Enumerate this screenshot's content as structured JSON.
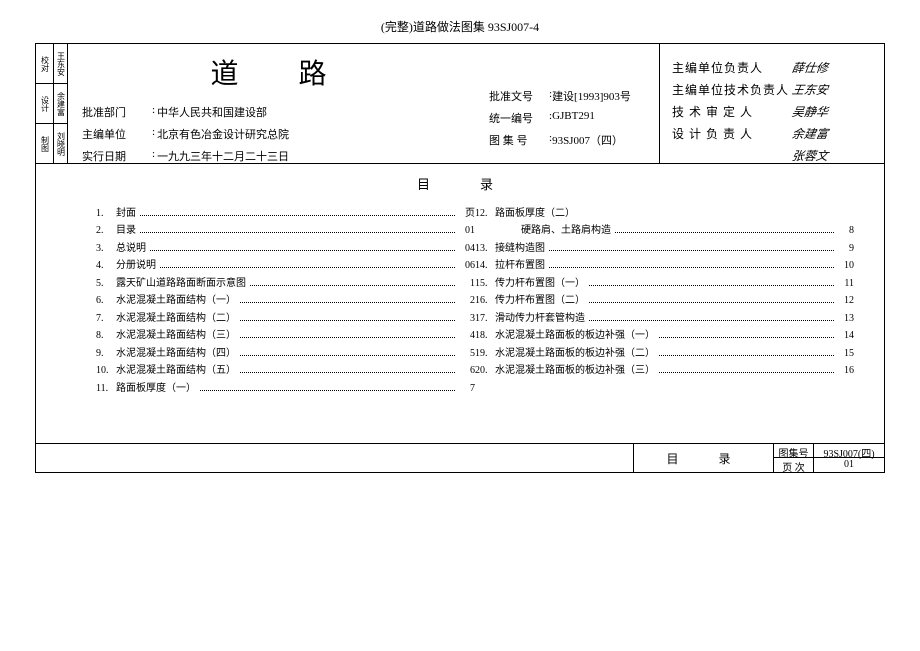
{
  "header": "(完整)道路做法图集 93SJ007-4",
  "side_tabs_a": [
    "校对",
    "设计",
    "制图"
  ],
  "side_tabs_b": [
    "王东安",
    "余建富",
    "刘晓明"
  ],
  "title": "道路",
  "info_left": [
    {
      "label": "批准部门",
      "value": "中华人民共和国建设部"
    },
    {
      "label": "主编单位",
      "value": "北京有色冶金设计研究总院"
    },
    {
      "label": "实行日期",
      "value": "一九九三年十二月二十三日"
    }
  ],
  "info_mid": [
    {
      "label": "批准文号",
      "value": "建设[1993]903号"
    },
    {
      "label": "统一编号",
      "value": "GJBT291"
    },
    {
      "label": "图 集 号",
      "value": "93SJ007（四）"
    }
  ],
  "info_right": [
    {
      "label": "主编单位负责人",
      "value": "薛仕修"
    },
    {
      "label": "主编单位技术负责人",
      "value": "王东安"
    },
    {
      "label": "技 术 审 定 人",
      "value": "吴静华"
    },
    {
      "label": "设 计 负 责 人",
      "value": "余建富"
    },
    {
      "label": "",
      "value": "张蓉文"
    }
  ],
  "toc_title": "目录",
  "toc_left": [
    {
      "n": "1.",
      "t": "封面",
      "p": "页"
    },
    {
      "n": "2.",
      "t": "目录",
      "p": "01"
    },
    {
      "n": "3.",
      "t": "总说明",
      "p": "04"
    },
    {
      "n": "4.",
      "t": "分册说明",
      "p": "06"
    },
    {
      "n": "5.",
      "t": "露天矿山道路路面断面示意图",
      "p": "1"
    },
    {
      "n": "6.",
      "t": "水泥混凝土路面结构（一）",
      "p": "2"
    },
    {
      "n": "7.",
      "t": "水泥混凝土路面结构（二）",
      "p": "3"
    },
    {
      "n": "8.",
      "t": "水泥混凝土路面结构（三）",
      "p": "4"
    },
    {
      "n": "9.",
      "t": "水泥混凝土路面结构（四）",
      "p": "5"
    },
    {
      "n": "10.",
      "t": "水泥混凝土路面结构（五）",
      "p": "6"
    },
    {
      "n": "11.",
      "t": "路面板厚度（一）",
      "p": "7"
    }
  ],
  "toc_right": [
    {
      "n": "12.",
      "t": "路面板厚度（二）",
      "p": ""
    },
    {
      "n": "",
      "t": "硬路肩、土路肩构造",
      "p": "8",
      "indent": true
    },
    {
      "n": "13.",
      "t": "接缝构造图",
      "p": "9"
    },
    {
      "n": "14.",
      "t": "拉杆布置图",
      "p": "10"
    },
    {
      "n": "15.",
      "t": "传力杆布置图（一）",
      "p": "11"
    },
    {
      "n": "16.",
      "t": "传力杆布置图（二）",
      "p": "12"
    },
    {
      "n": "17.",
      "t": "滑动传力杆套管构造",
      "p": "13"
    },
    {
      "n": "18.",
      "t": "水泥混凝土路面板的板边补强（一）",
      "p": "14"
    },
    {
      "n": "19.",
      "t": "水泥混凝土路面板的板边补强（二）",
      "p": "15"
    },
    {
      "n": "20.",
      "t": "水泥混凝土路面板的板边补强（三）",
      "p": "16"
    }
  ],
  "stamp": {
    "label": "目录",
    "rows": [
      {
        "k": "图集号",
        "v": "93SJ007(四)"
      },
      {
        "k": "页 次",
        "v": "01"
      }
    ]
  }
}
